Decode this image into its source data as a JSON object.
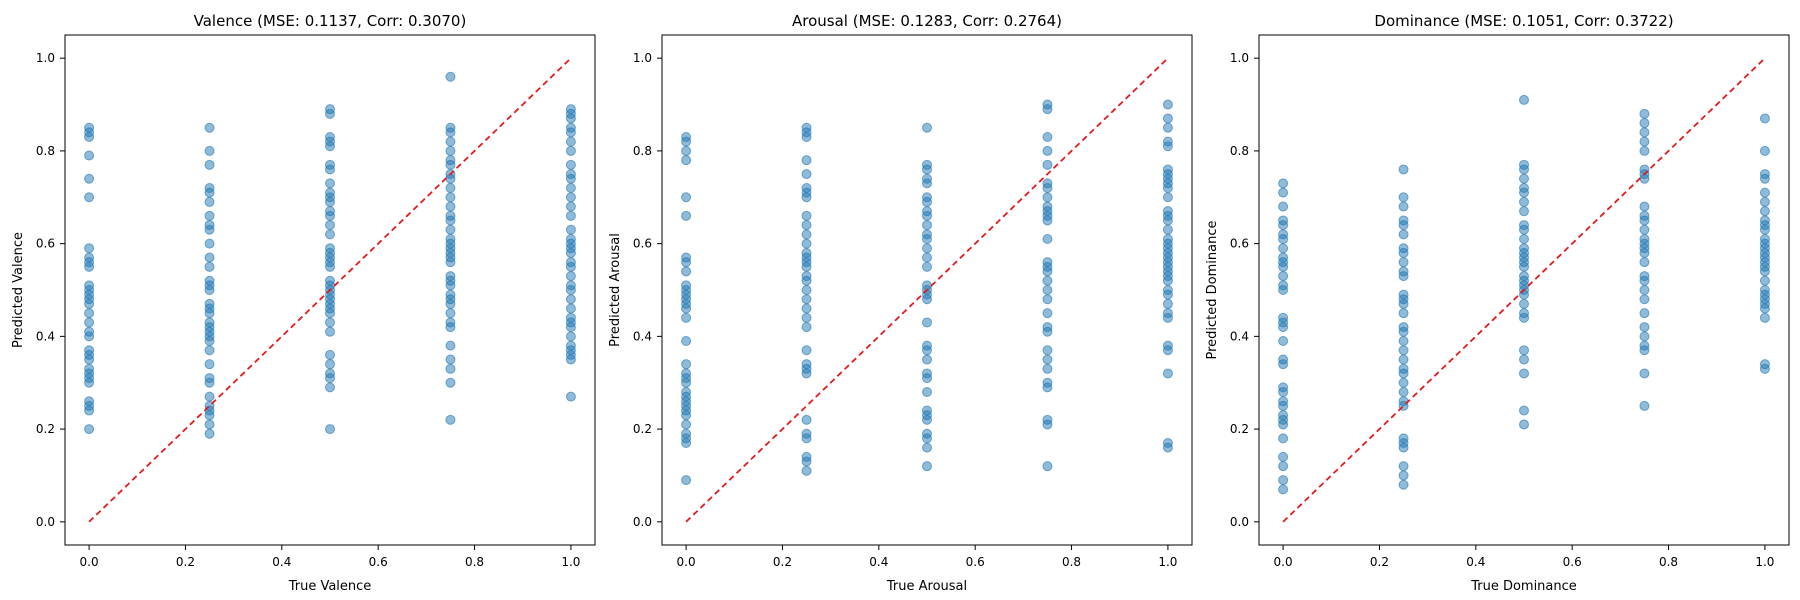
{
  "colors": {
    "points": "#1f77b4",
    "diagonal": "#e41a1c"
  },
  "chart_data": [
    {
      "type": "scatter",
      "title": "Valence (MSE: 0.1137, Corr: 0.3070)",
      "xlabel": "True Valence",
      "ylabel": "Predicted Valence",
      "xlim": [
        -0.05,
        1.05
      ],
      "ylim": [
        -0.05,
        1.05
      ],
      "xticks": [
        "0.0",
        "0.2",
        "0.4",
        "0.6",
        "0.8",
        "1.0"
      ],
      "yticks": [
        "0.0",
        "0.2",
        "0.4",
        "0.6",
        "0.8",
        "1.0"
      ],
      "reference_line": {
        "from": [
          0,
          0
        ],
        "to": [
          1,
          1
        ],
        "style": "dashed"
      },
      "series": [
        {
          "x": 0.0,
          "y": [
            0.85,
            0.84,
            0.83,
            0.79,
            0.74,
            0.7,
            0.59,
            0.57,
            0.56,
            0.55,
            0.51,
            0.5,
            0.49,
            0.48,
            0.47,
            0.45,
            0.43,
            0.41,
            0.4,
            0.37,
            0.36,
            0.35,
            0.33,
            0.32,
            0.31,
            0.3,
            0.26,
            0.25,
            0.24,
            0.2
          ]
        },
        {
          "x": 0.25,
          "y": [
            0.85,
            0.8,
            0.77,
            0.72,
            0.71,
            0.69,
            0.66,
            0.64,
            0.63,
            0.6,
            0.57,
            0.55,
            0.52,
            0.51,
            0.5,
            0.47,
            0.46,
            0.45,
            0.43,
            0.42,
            0.41,
            0.4,
            0.39,
            0.37,
            0.34,
            0.31,
            0.3,
            0.27,
            0.25,
            0.24,
            0.23,
            0.21,
            0.19
          ]
        },
        {
          "x": 0.5,
          "y": [
            0.89,
            0.88,
            0.83,
            0.82,
            0.81,
            0.77,
            0.76,
            0.73,
            0.71,
            0.7,
            0.69,
            0.67,
            0.66,
            0.64,
            0.62,
            0.59,
            0.58,
            0.57,
            0.56,
            0.55,
            0.52,
            0.51,
            0.5,
            0.49,
            0.48,
            0.47,
            0.46,
            0.45,
            0.43,
            0.41,
            0.36,
            0.34,
            0.32,
            0.31,
            0.29,
            0.2
          ]
        },
        {
          "x": 0.75,
          "y": [
            0.96,
            0.85,
            0.84,
            0.82,
            0.8,
            0.78,
            0.77,
            0.75,
            0.74,
            0.72,
            0.7,
            0.68,
            0.66,
            0.65,
            0.63,
            0.61,
            0.6,
            0.59,
            0.58,
            0.57,
            0.56,
            0.53,
            0.52,
            0.51,
            0.49,
            0.48,
            0.47,
            0.45,
            0.43,
            0.42,
            0.38,
            0.35,
            0.33,
            0.3,
            0.22
          ]
        },
        {
          "x": 1.0,
          "y": [
            0.89,
            0.88,
            0.87,
            0.85,
            0.84,
            0.82,
            0.8,
            0.77,
            0.75,
            0.74,
            0.72,
            0.7,
            0.68,
            0.66,
            0.63,
            0.61,
            0.6,
            0.59,
            0.58,
            0.56,
            0.55,
            0.53,
            0.51,
            0.5,
            0.48,
            0.46,
            0.44,
            0.43,
            0.42,
            0.4,
            0.38,
            0.37,
            0.36,
            0.35,
            0.27
          ]
        }
      ]
    },
    {
      "type": "scatter",
      "title": "Arousal (MSE: 0.1283, Corr: 0.2764)",
      "xlabel": "True Arousal",
      "ylabel": "Predicted Arousal",
      "xlim": [
        -0.05,
        1.05
      ],
      "ylim": [
        -0.05,
        1.05
      ],
      "xticks": [
        "0.0",
        "0.2",
        "0.4",
        "0.6",
        "0.8",
        "1.0"
      ],
      "yticks": [
        "0.0",
        "0.2",
        "0.4",
        "0.6",
        "0.8",
        "1.0"
      ],
      "reference_line": {
        "from": [
          0,
          0
        ],
        "to": [
          1,
          1
        ],
        "style": "dashed"
      },
      "series": [
        {
          "x": 0.0,
          "y": [
            0.83,
            0.82,
            0.8,
            0.78,
            0.7,
            0.66,
            0.57,
            0.56,
            0.54,
            0.51,
            0.5,
            0.49,
            0.48,
            0.47,
            0.46,
            0.44,
            0.39,
            0.34,
            0.32,
            0.31,
            0.3,
            0.28,
            0.27,
            0.26,
            0.25,
            0.24,
            0.23,
            0.21,
            0.19,
            0.18,
            0.17,
            0.09
          ]
        },
        {
          "x": 0.25,
          "y": [
            0.85,
            0.84,
            0.83,
            0.78,
            0.75,
            0.72,
            0.71,
            0.7,
            0.66,
            0.64,
            0.62,
            0.6,
            0.58,
            0.57,
            0.56,
            0.55,
            0.53,
            0.52,
            0.5,
            0.48,
            0.46,
            0.44,
            0.42,
            0.37,
            0.34,
            0.33,
            0.32,
            0.22,
            0.19,
            0.18,
            0.14,
            0.13,
            0.11
          ]
        },
        {
          "x": 0.5,
          "y": [
            0.85,
            0.77,
            0.76,
            0.74,
            0.73,
            0.7,
            0.69,
            0.67,
            0.66,
            0.64,
            0.62,
            0.61,
            0.59,
            0.57,
            0.55,
            0.51,
            0.5,
            0.49,
            0.48,
            0.43,
            0.38,
            0.37,
            0.35,
            0.32,
            0.31,
            0.28,
            0.24,
            0.23,
            0.22,
            0.19,
            0.18,
            0.16,
            0.12
          ]
        },
        {
          "x": 0.75,
          "y": [
            0.9,
            0.89,
            0.83,
            0.8,
            0.77,
            0.73,
            0.72,
            0.7,
            0.68,
            0.67,
            0.66,
            0.65,
            0.61,
            0.56,
            0.55,
            0.54,
            0.52,
            0.5,
            0.48,
            0.45,
            0.42,
            0.41,
            0.37,
            0.35,
            0.33,
            0.3,
            0.29,
            0.22,
            0.21,
            0.12
          ]
        },
        {
          "x": 1.0,
          "y": [
            0.9,
            0.87,
            0.85,
            0.82,
            0.81,
            0.76,
            0.75,
            0.74,
            0.73,
            0.72,
            0.7,
            0.67,
            0.66,
            0.65,
            0.63,
            0.61,
            0.6,
            0.59,
            0.58,
            0.57,
            0.56,
            0.55,
            0.54,
            0.53,
            0.52,
            0.5,
            0.49,
            0.47,
            0.45,
            0.44,
            0.38,
            0.37,
            0.32,
            0.17,
            0.16
          ]
        }
      ]
    },
    {
      "type": "scatter",
      "title": "Dominance (MSE: 0.1051, Corr: 0.3722)",
      "xlabel": "True Dominance",
      "ylabel": "Predicted Dominance",
      "xlim": [
        -0.05,
        1.05
      ],
      "ylim": [
        -0.05,
        1.05
      ],
      "xticks": [
        "0.0",
        "0.2",
        "0.4",
        "0.6",
        "0.8",
        "1.0"
      ],
      "yticks": [
        "0.0",
        "0.2",
        "0.4",
        "0.6",
        "0.8",
        "1.0"
      ],
      "reference_line": {
        "from": [
          0,
          0
        ],
        "to": [
          1,
          1
        ],
        "style": "dashed"
      },
      "series": [
        {
          "x": 0.0,
          "y": [
            0.73,
            0.71,
            0.68,
            0.65,
            0.64,
            0.62,
            0.61,
            0.59,
            0.57,
            0.56,
            0.55,
            0.53,
            0.51,
            0.5,
            0.44,
            0.43,
            0.42,
            0.39,
            0.35,
            0.34,
            0.29,
            0.28,
            0.26,
            0.25,
            0.23,
            0.22,
            0.21,
            0.18,
            0.14,
            0.12,
            0.09,
            0.07
          ]
        },
        {
          "x": 0.25,
          "y": [
            0.76,
            0.7,
            0.68,
            0.65,
            0.64,
            0.62,
            0.59,
            0.58,
            0.56,
            0.54,
            0.53,
            0.49,
            0.48,
            0.47,
            0.45,
            0.42,
            0.41,
            0.39,
            0.37,
            0.35,
            0.33,
            0.32,
            0.3,
            0.28,
            0.26,
            0.25,
            0.18,
            0.17,
            0.16,
            0.12,
            0.1,
            0.08
          ]
        },
        {
          "x": 0.5,
          "y": [
            0.91,
            0.77,
            0.76,
            0.74,
            0.72,
            0.71,
            0.69,
            0.67,
            0.64,
            0.63,
            0.61,
            0.59,
            0.58,
            0.57,
            0.56,
            0.55,
            0.53,
            0.52,
            0.51,
            0.5,
            0.49,
            0.47,
            0.45,
            0.44,
            0.37,
            0.35,
            0.32,
            0.24,
            0.21
          ]
        },
        {
          "x": 0.75,
          "y": [
            0.88,
            0.86,
            0.84,
            0.82,
            0.8,
            0.76,
            0.75,
            0.74,
            0.68,
            0.66,
            0.65,
            0.63,
            0.61,
            0.6,
            0.59,
            0.58,
            0.56,
            0.53,
            0.52,
            0.5,
            0.48,
            0.45,
            0.42,
            0.4,
            0.38,
            0.37,
            0.32,
            0.25
          ]
        },
        {
          "x": 1.0,
          "y": [
            0.87,
            0.8,
            0.75,
            0.74,
            0.71,
            0.69,
            0.67,
            0.65,
            0.64,
            0.63,
            0.61,
            0.6,
            0.59,
            0.58,
            0.57,
            0.56,
            0.55,
            0.54,
            0.52,
            0.5,
            0.49,
            0.48,
            0.47,
            0.46,
            0.44,
            0.34,
            0.33
          ]
        }
      ]
    }
  ]
}
